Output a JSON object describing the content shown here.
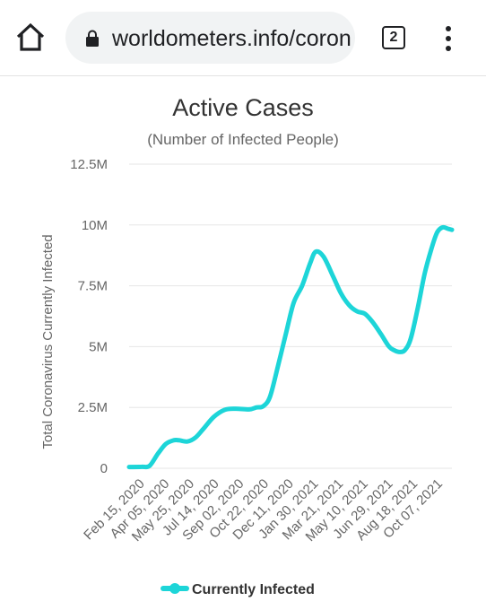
{
  "browser": {
    "url": "worldometers.info/coron",
    "tab_count": "2",
    "icons": {
      "home": "home-icon",
      "lock": "lock-icon",
      "tabs": "tab-switcher-icon",
      "menu": "more-vert-icon"
    }
  },
  "colors": {
    "series": "#1dd5d8",
    "grid": "#e6e6e6",
    "text": "#333333"
  },
  "chart_data": {
    "type": "line",
    "title": "Active Cases",
    "subtitle": "(Number of Infected People)",
    "ylabel": "Total Coronavirus Currently Infected",
    "xlabel": "",
    "ylim": [
      0,
      12500000
    ],
    "yticks": [
      {
        "value": 0,
        "label": "0"
      },
      {
        "value": 2500000,
        "label": "2.5M"
      },
      {
        "value": 5000000,
        "label": "5M"
      },
      {
        "value": 7500000,
        "label": "7.5M"
      },
      {
        "value": 10000000,
        "label": "10M"
      },
      {
        "value": 12500000,
        "label": "12.5M"
      }
    ],
    "xlim": [
      "2020-02-15",
      "2021-10-23"
    ],
    "x_tick_labels": [
      "Feb 15, 2020",
      "Apr 05, 2020",
      "May 25, 2020",
      "Jul 14, 2020",
      "Sep 02, 2020",
      "Oct 22, 2020",
      "Dec 11, 2020",
      "Jan 30, 2021",
      "Mar 21, 2021",
      "May 10, 2021",
      "Jun 29, 2021",
      "Aug 18, 2021",
      "Oct 07, 2021"
    ],
    "grid": true,
    "legend_position": "bottom",
    "series": [
      {
        "name": "Currently Infected",
        "color": "#1dd5d8",
        "x": [
          "2020-02-15",
          "2020-03-10",
          "2020-03-25",
          "2020-04-10",
          "2020-04-25",
          "2020-05-10",
          "2020-05-20",
          "2020-06-05",
          "2020-06-20",
          "2020-07-05",
          "2020-07-25",
          "2020-08-15",
          "2020-09-05",
          "2020-10-01",
          "2020-10-15",
          "2020-10-28",
          "2020-11-10",
          "2020-11-25",
          "2020-12-11",
          "2020-12-25",
          "2021-01-10",
          "2021-01-25",
          "2021-02-05",
          "2021-02-20",
          "2021-03-10",
          "2021-03-25",
          "2021-04-10",
          "2021-04-25",
          "2021-05-10",
          "2021-05-25",
          "2021-06-10",
          "2021-06-25",
          "2021-07-05",
          "2021-07-15",
          "2021-07-25",
          "2021-08-05",
          "2021-08-18",
          "2021-09-01",
          "2021-09-15",
          "2021-09-25",
          "2021-10-05",
          "2021-10-15",
          "2021-10-23"
        ],
        "values": [
          50000,
          60000,
          100000,
          600000,
          1000000,
          1150000,
          1150000,
          1100000,
          1250000,
          1600000,
          2100000,
          2400000,
          2450000,
          2420000,
          2500000,
          2550000,
          2950000,
          4200000,
          5600000,
          6800000,
          7500000,
          8400000,
          8900000,
          8700000,
          7900000,
          7200000,
          6700000,
          6450000,
          6350000,
          6000000,
          5500000,
          5000000,
          4850000,
          4780000,
          4850000,
          5300000,
          6500000,
          8000000,
          9100000,
          9700000,
          9900000,
          9850000,
          9800000
        ]
      }
    ]
  }
}
